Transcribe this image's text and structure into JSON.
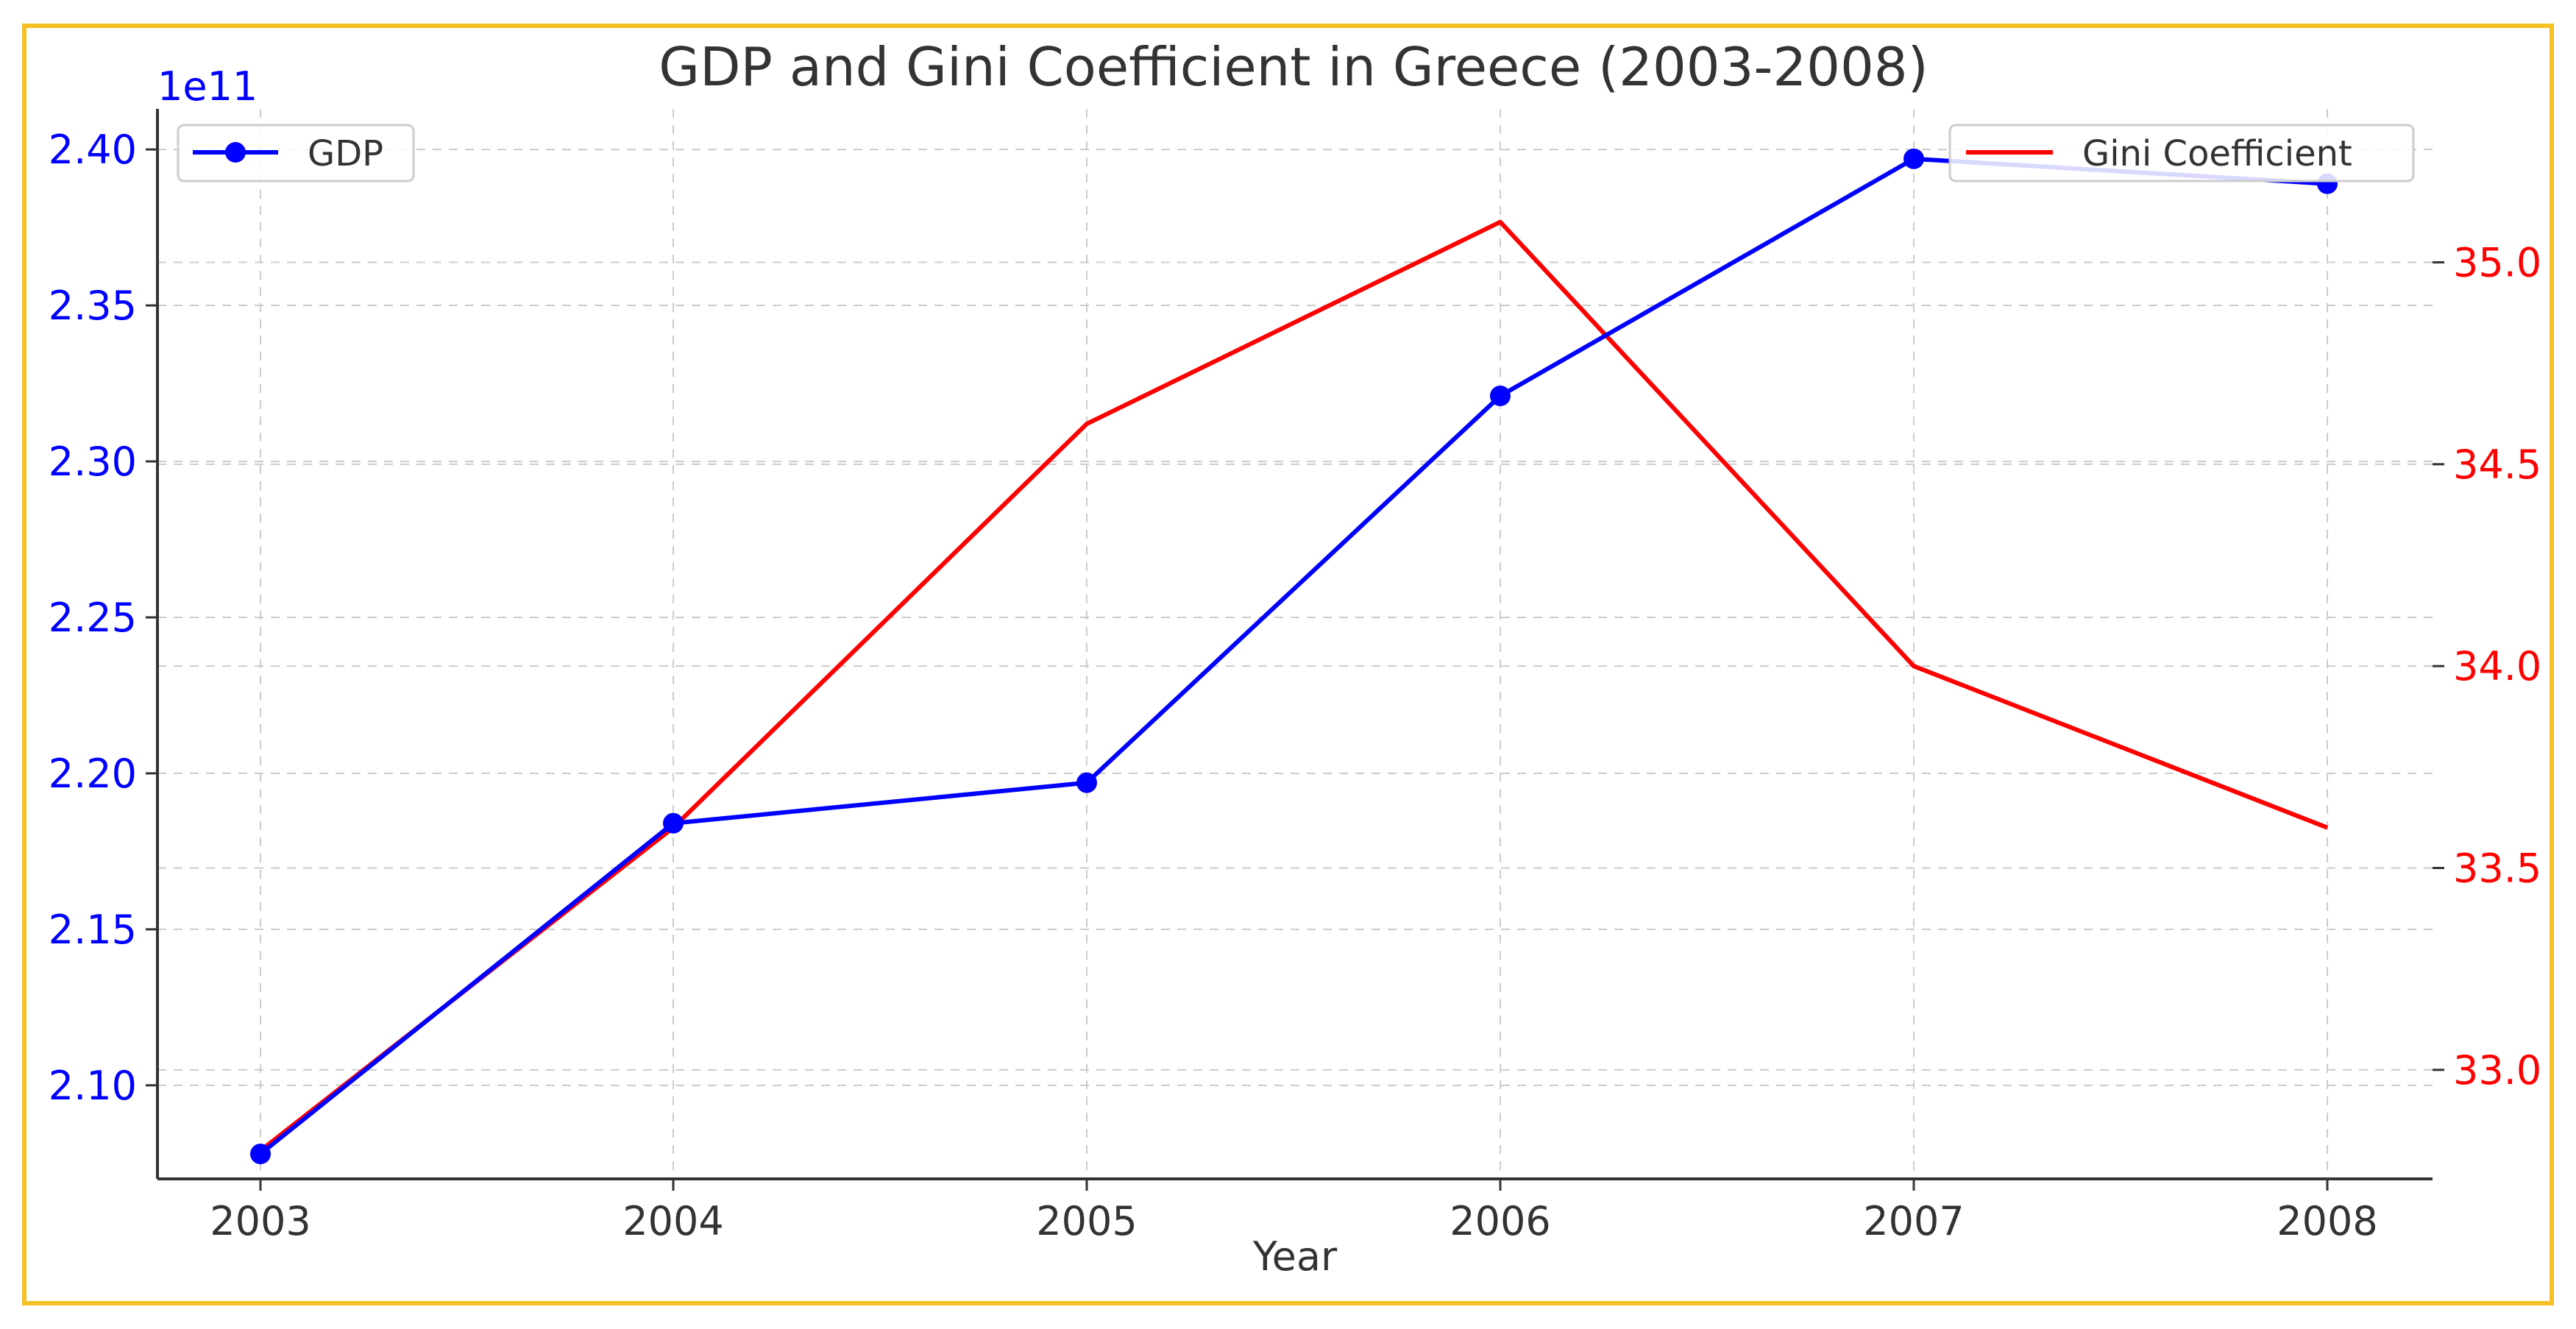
{
  "chart_data": {
    "type": "line",
    "title": "GDP and Gini Coefficient in Greece (2003-2008)",
    "xlabel": "Year",
    "ylabel_left": "",
    "ylabel_right": "",
    "x": [
      "2003",
      "2004",
      "2005",
      "2006",
      "2007",
      "2008"
    ],
    "series": [
      {
        "name": "GDP",
        "axis": "left",
        "color": "#0000ff",
        "marker": "circle",
        "values": [
          207800000000,
          218400000000,
          219700000000,
          232100000000,
          239700000000,
          238900000000
        ]
      },
      {
        "name": "Gini Coefficient",
        "axis": "right",
        "color": "#ff0000",
        "marker": "none",
        "values": [
          32.8,
          33.6,
          34.6,
          35.1,
          34.0,
          33.6
        ]
      }
    ],
    "left_axis": {
      "range": [
        207000000000,
        241300000000
      ],
      "ticks": [
        210000000000,
        215000000000,
        220000000000,
        225000000000,
        230000000000,
        235000000000,
        240000000000
      ],
      "tick_labels": [
        "2.10",
        "2.15",
        "2.20",
        "2.25",
        "2.30",
        "2.35",
        "2.40"
      ],
      "offset_label": "1e11",
      "color": "#0000ff"
    },
    "right_axis": {
      "range": [
        32.73,
        35.38
      ],
      "ticks": [
        33.0,
        33.5,
        34.0,
        34.5,
        35.0
      ],
      "tick_labels": [
        "33.0",
        "33.5",
        "34.0",
        "34.5",
        "35.0"
      ],
      "color": "#ff0000"
    },
    "grid": true,
    "legend_left": "upper-left",
    "legend_right": "upper-right"
  }
}
